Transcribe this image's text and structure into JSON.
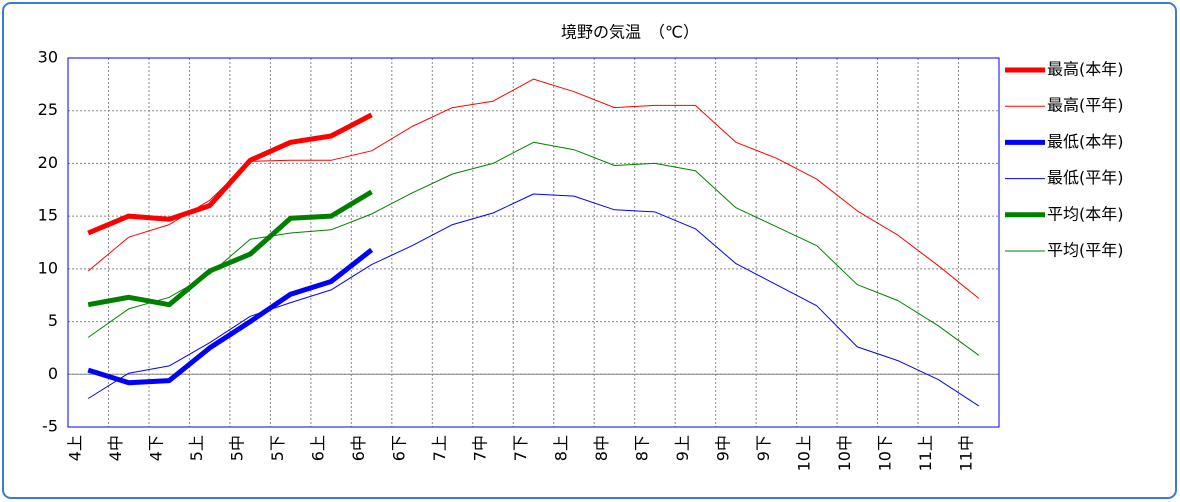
{
  "chart_data": {
    "type": "line",
    "title": "境野の気温　（℃）",
    "categories": [
      "4上",
      "4中",
      "4下",
      "5上",
      "5中",
      "5下",
      "6上",
      "6中",
      "6下",
      "7上",
      "7中",
      "7下",
      "8上",
      "8中",
      "8下",
      "9上",
      "9中",
      "9下",
      "10上",
      "10中",
      "10下",
      "11上",
      "11中"
    ],
    "ylim": [
      -5,
      30
    ],
    "yticks": [
      -5,
      0,
      5,
      10,
      15,
      20,
      25,
      30
    ],
    "grid": true,
    "series": [
      {
        "name": "最高(本年)",
        "color": "#ff0000",
        "line_width": 5,
        "values": [
          13.4,
          15.0,
          14.7,
          16.0,
          20.3,
          22.0,
          22.6,
          24.6,
          null,
          null,
          null,
          null,
          null,
          null,
          null,
          null,
          null,
          null,
          null,
          null,
          null,
          null,
          null
        ]
      },
      {
        "name": "最高(平年)",
        "color": "#ff0000",
        "line_width": 1,
        "values": [
          9.8,
          13.0,
          14.2,
          16.5,
          20.2,
          20.3,
          20.3,
          21.2,
          23.5,
          25.3,
          25.9,
          28.0,
          26.8,
          25.3,
          25.5,
          25.5,
          22.0,
          20.5,
          18.5,
          15.5,
          13.2,
          10.3,
          7.2
        ]
      },
      {
        "name": "最低(本年)",
        "color": "#0000ff",
        "line_width": 5,
        "values": [
          0.4,
          -0.8,
          -0.6,
          2.5,
          5.0,
          7.6,
          8.8,
          11.8,
          null,
          null,
          null,
          null,
          null,
          null,
          null,
          null,
          null,
          null,
          null,
          null,
          null,
          null,
          null
        ]
      },
      {
        "name": "最低(平年)",
        "color": "#0000ff",
        "line_width": 1,
        "values": [
          -2.3,
          0.1,
          0.8,
          3.0,
          5.5,
          6.8,
          8.0,
          10.4,
          12.2,
          14.2,
          15.3,
          17.1,
          16.9,
          15.6,
          15.4,
          13.8,
          10.5,
          8.5,
          6.5,
          2.6,
          1.3,
          -0.5,
          -3.0
        ]
      },
      {
        "name": "平均(本年)",
        "color": "#008000",
        "line_width": 5,
        "values": [
          6.6,
          7.3,
          6.6,
          9.8,
          11.4,
          14.8,
          15.0,
          17.3,
          null,
          null,
          null,
          null,
          null,
          null,
          null,
          null,
          null,
          null,
          null,
          null,
          null,
          null,
          null
        ]
      },
      {
        "name": "平均(平年)",
        "color": "#008000",
        "line_width": 1,
        "values": [
          3.5,
          6.2,
          7.3,
          9.5,
          12.8,
          13.4,
          13.7,
          15.2,
          17.2,
          19.0,
          20.0,
          22.0,
          21.3,
          19.8,
          20.0,
          19.3,
          15.8,
          14.0,
          12.2,
          8.5,
          7.0,
          4.6,
          1.8
        ]
      }
    ]
  }
}
